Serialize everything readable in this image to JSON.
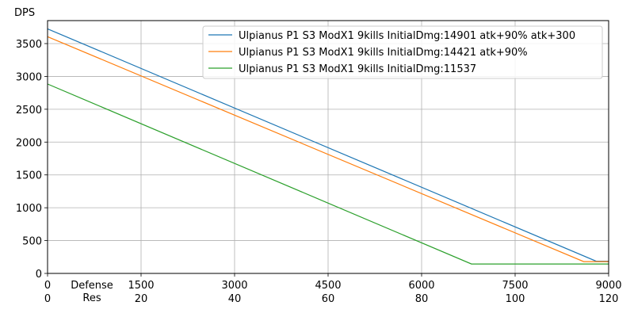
{
  "chart_data": {
    "type": "line",
    "ylabel": "DPS",
    "xlabel": [
      "Defense",
      "Res"
    ],
    "x_ticks": {
      "defense": [
        "0",
        "1500",
        "3000",
        "4500",
        "6000",
        "7500",
        "9000"
      ],
      "res": [
        "0",
        "20",
        "40",
        "60",
        "80",
        "100",
        "120"
      ]
    },
    "y_ticks": [
      "0",
      "500",
      "1000",
      "1500",
      "2000",
      "2500",
      "3000",
      "3500"
    ],
    "xlim": [
      0,
      9000
    ],
    "ylim": [
      0,
      3850
    ],
    "grid": true,
    "legend_position": "top-right",
    "series": [
      {
        "name": "Ulpianus P1 S3 ModX1 9kills InitialDmg:14901 atk+90% atk+300",
        "color": "#1f77b4",
        "x": [
          0,
          8800,
          9000
        ],
        "y": [
          3725,
          186,
          186
        ]
      },
      {
        "name": "Ulpianus P1 S3 ModX1 9kills InitialDmg:14421 atk+90%",
        "color": "#ff7f0e",
        "x": [
          0,
          8600,
          9000
        ],
        "y": [
          3605,
          180,
          180
        ]
      },
      {
        "name": "Ulpianus P1 S3 ModX1 9kills InitialDmg:11537",
        "color": "#2ca02c",
        "x": [
          0,
          6800,
          9000
        ],
        "y": [
          2884,
          144,
          144
        ]
      }
    ]
  }
}
